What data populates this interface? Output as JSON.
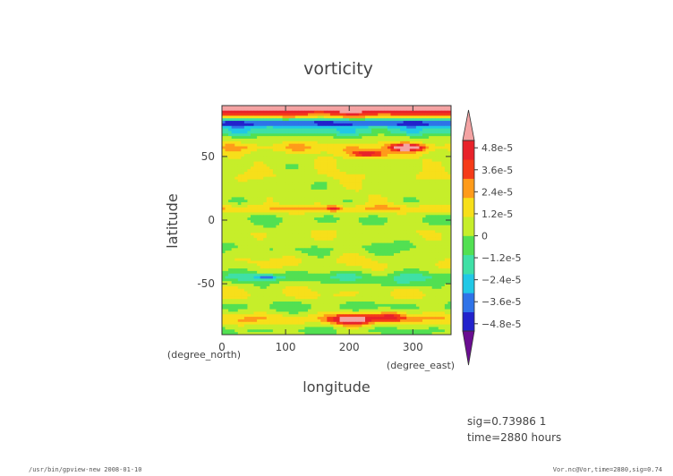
{
  "chart_data": {
    "type": "heatmap",
    "title": "vorticity",
    "xlabel": "longitude",
    "ylabel": "latitude",
    "x_unit": "(degree_east)",
    "y_unit": "(degree_north)",
    "xlim": [
      0,
      360
    ],
    "ylim": [
      -90,
      90
    ],
    "x_ticks": [
      0,
      100,
      200,
      300
    ],
    "y_ticks": [
      -50,
      0,
      50
    ],
    "x_tick_labels": [
      "0",
      "100",
      "200",
      "300"
    ],
    "y_tick_labels": [
      "-50",
      "0",
      "50"
    ],
    "colorbar": {
      "vmin": -5.2e-05,
      "vmax": 5.2e-05,
      "extend": "both",
      "labels": [
        "4.8e-5",
        "3.6e-5",
        "2.4e-5",
        "1.2e-5",
        "0",
        "−1.2e-5",
        "−2.4e-5",
        "−3.6e-5",
        "−4.8e-5"
      ],
      "label_values": [
        4.8e-05,
        3.6e-05,
        2.4e-05,
        1.2e-05,
        0,
        -1.2e-05,
        -2.4e-05,
        -3.6e-05,
        -4.8e-05
      ],
      "colors": [
        "#6a0d91",
        "#2222cc",
        "#2f73e8",
        "#21c8e6",
        "#3fe0a6",
        "#52e052",
        "#c6ee2a",
        "#f7df1a",
        "#ff9b1a",
        "#f53b18",
        "#e8222a",
        "#f4a3a3"
      ]
    },
    "zonal_bands": [
      {
        "lat": 88,
        "value": 5.2e-05,
        "width": 4
      },
      {
        "lat": 82,
        "value": 1.8e-05,
        "width": 3
      },
      {
        "lat": 76,
        "value": -4e-05,
        "width": 4
      },
      {
        "lat": 69,
        "value": -1.5e-05,
        "width": 3
      },
      {
        "lat": 57,
        "value": 1.2e-05,
        "width": 4
      },
      {
        "lat": 47,
        "value": 2e-06,
        "width": 5
      },
      {
        "lat": 35,
        "value": 4e-06,
        "width": 5
      },
      {
        "lat": 20,
        "value": 1e-06,
        "width": 5
      },
      {
        "lat": 9,
        "value": 1.3e-05,
        "width": 3
      },
      {
        "lat": 0,
        "value": -4e-06,
        "width": 4
      },
      {
        "lat": -10,
        "value": 3e-06,
        "width": 4
      },
      {
        "lat": -22,
        "value": -5e-06,
        "width": 5
      },
      {
        "lat": -33,
        "value": 5e-06,
        "width": 5
      },
      {
        "lat": -45,
        "value": -1.2e-05,
        "width": 4
      },
      {
        "lat": -58,
        "value": 5e-06,
        "width": 5
      },
      {
        "lat": -68,
        "value": -6e-06,
        "width": 4
      },
      {
        "lat": -78,
        "value": 1.2e-05,
        "width": 4
      },
      {
        "lat": -87,
        "value": -5e-06,
        "width": 3
      }
    ],
    "features": [
      {
        "lon": 230,
        "lat": 52,
        "value": 3.8e-05,
        "rlon": 30,
        "rlat": 3
      },
      {
        "lon": 290,
        "lat": 57,
        "value": 4e-05,
        "rlon": 25,
        "rlat": 3
      },
      {
        "lon": 175,
        "lat": 9,
        "value": 2.2e-05,
        "rlon": 12,
        "rlat": 2
      },
      {
        "lon": 70,
        "lat": -45,
        "value": -2.5e-05,
        "rlon": 18,
        "rlat": 2
      },
      {
        "lon": 205,
        "lat": -78,
        "value": 4e-05,
        "rlon": 35,
        "rlat": 4
      },
      {
        "lon": 265,
        "lat": -76,
        "value": 2.8e-05,
        "rlon": 25,
        "rlat": 4
      },
      {
        "lon": 120,
        "lat": -18,
        "value": 8e-06,
        "rlon": 30,
        "rlat": 4
      },
      {
        "lon": 280,
        "lat": -50,
        "value": -1.2e-05,
        "rlon": 30,
        "rlat": 4
      }
    ]
  },
  "info": {
    "sig_line": "sig=0.73986 1",
    "time_line": "time=2880 hours"
  },
  "footer": {
    "left": "/usr/bin/gpview-new  2008-01-10",
    "right": "Vor.nc@Vor,time=2880,sig=0.74"
  }
}
